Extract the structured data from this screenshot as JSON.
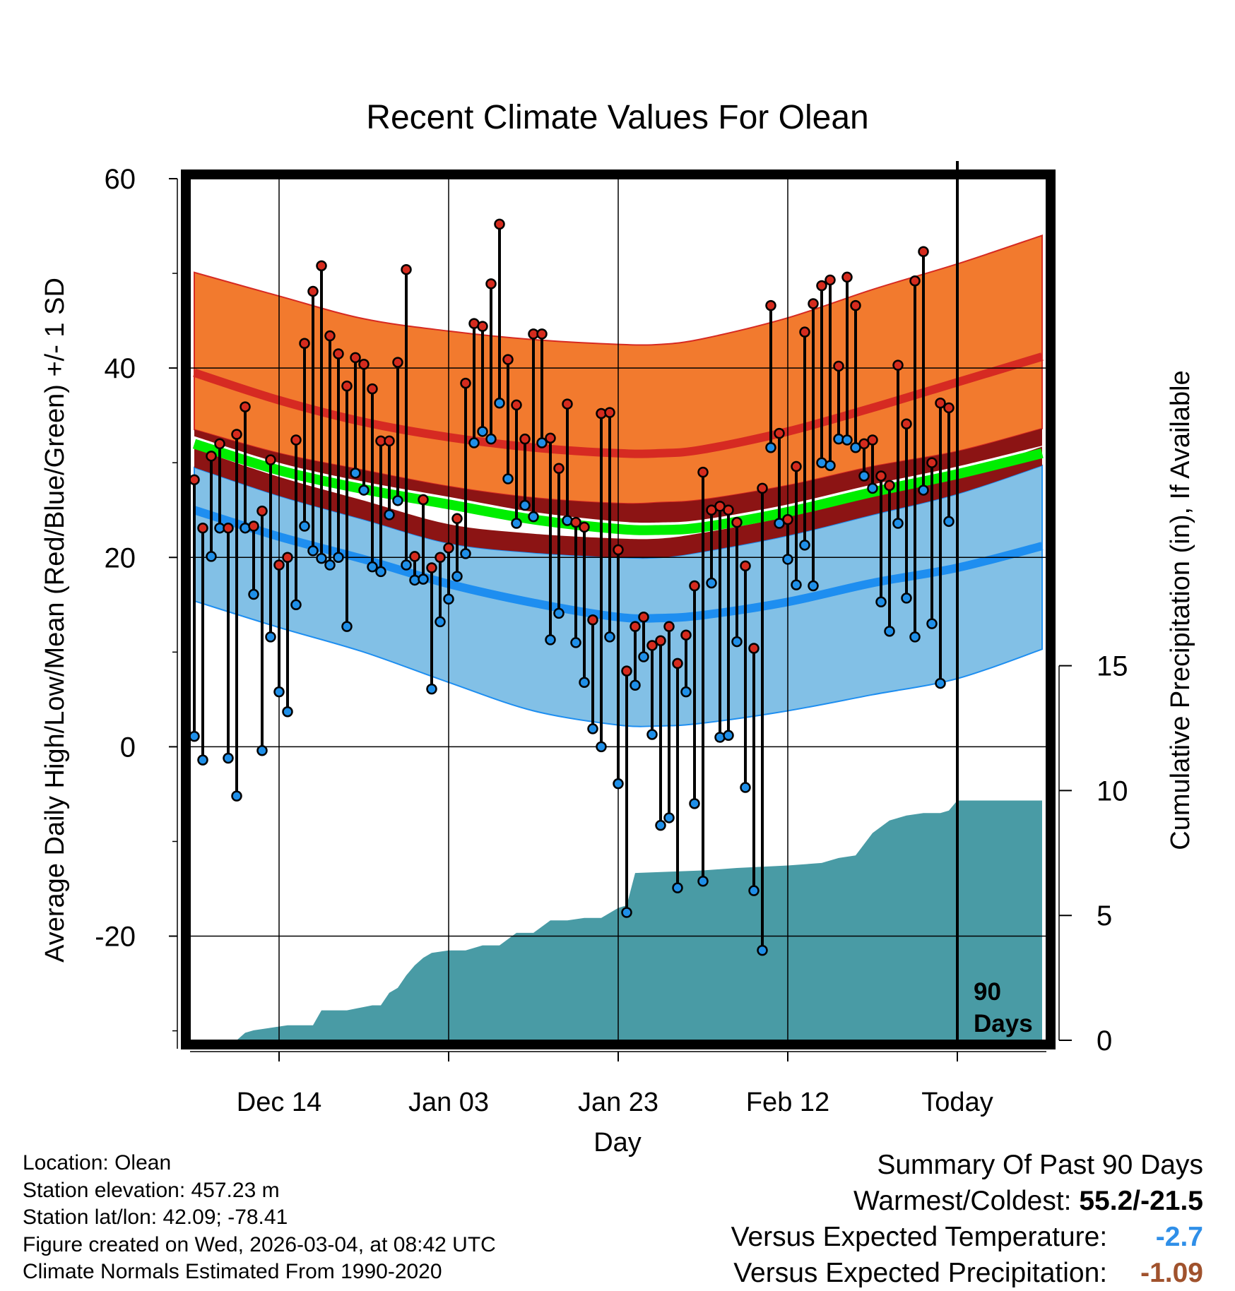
{
  "page": {
    "title": "Recent Climate Values For Olean",
    "colors": {
      "record_band": "#f27a2e",
      "normal_high": "#d62a22",
      "normal_low_band": "#8c1414",
      "mean": "#00ee00",
      "low_band": "#82c0e6",
      "normal_low": "#1e8ef0",
      "precip_fill": "#499ba5",
      "high_dot": "#d52b1e",
      "low_dot": "#1f8fe8"
    }
  },
  "info": {
    "location": "Location: Olean",
    "elevation": "Station elevation: 457.23 m",
    "latlon": "Station lat/lon: 42.09; -78.41",
    "created": "Figure created on Wed, 2026-03-04, at 08:42 UTC",
    "normals": "Climate Normals Estimated From 1990-2020"
  },
  "summary": {
    "title": "Summary Of Past 90 Days",
    "extremes_label": "Warmest/Coldest:",
    "extremes_value": "55.2/-21.5",
    "temp_label": "Versus Expected Temperature:",
    "temp_value": "-2.7",
    "precip_label": "Versus Expected Precipitation:",
    "precip_value": "-1.09"
  },
  "chart_data": {
    "type": "line",
    "title": "Recent Climate Values For Olean",
    "xlabel": "Day",
    "ylabel": "Average Daily High/Low/Mean (Red/Blue/Green) +/- 1 SD",
    "y2label": "Cumulative Precipitation (in), If Available",
    "ylim": [
      -31,
      60
    ],
    "y_ticks": [
      -20,
      0,
      20,
      40,
      60
    ],
    "y_minor": [
      -30,
      -10,
      10,
      30,
      50
    ],
    "y2lim": [
      0,
      34.5
    ],
    "y2_ticks": [
      0,
      5,
      10,
      15
    ],
    "xlim": [
      -0.5,
      100.5
    ],
    "x_ticks": [
      {
        "day": 10,
        "label": "Dec 14"
      },
      {
        "day": 30,
        "label": "Jan 03"
      },
      {
        "day": 50,
        "label": "Jan 23"
      },
      {
        "day": 70,
        "label": "Feb 12"
      },
      {
        "day": 90,
        "label": "Today"
      }
    ],
    "today_day": 90,
    "today_label": "90 Days",
    "grid": true,
    "normal_x": [
      0,
      10,
      20,
      30,
      40,
      50,
      55,
      60,
      70,
      80,
      90,
      100
    ],
    "normal_high_upper": [
      50.1,
      47.6,
      45.2,
      43.9,
      43.0,
      42.5,
      42.5,
      43.1,
      45.3,
      48.3,
      51.0,
      54.0
    ],
    "normal_high": [
      39.5,
      36.6,
      34.3,
      32.7,
      31.6,
      31.0,
      31.0,
      31.4,
      33.3,
      35.8,
      38.5,
      41.2
    ],
    "normal_high_lower": [
      33.5,
      31.0,
      29.2,
      27.5,
      26.3,
      25.7,
      25.8,
      26.1,
      27.6,
      29.6,
      31.2,
      33.6
    ],
    "normal_mean": [
      32.0,
      29.2,
      27.2,
      25.6,
      24.0,
      23.0,
      22.9,
      23.2,
      24.8,
      26.9,
      28.8,
      31.0
    ],
    "normal_low_upper": [
      29.5,
      26.5,
      24.0,
      21.5,
      20.5,
      20.0,
      20.0,
      20.6,
      22.3,
      24.5,
      26.7,
      29.7
    ],
    "normal_low": [
      25.0,
      22.2,
      19.8,
      17.2,
      15.2,
      13.7,
      13.6,
      13.9,
      15.3,
      17.3,
      18.9,
      21.2
    ],
    "normal_low_lower": [
      15.4,
      12.6,
      10.0,
      6.8,
      3.8,
      2.3,
      2.2,
      2.5,
      3.8,
      5.5,
      7.2,
      10.3
    ],
    "highs": [
      28.2,
      23.1,
      30.7,
      32.0,
      23.1,
      33.0,
      35.9,
      23.3,
      24.9,
      30.3,
      19.2,
      20.0,
      32.4,
      42.6,
      48.1,
      50.8,
      43.4,
      41.5,
      38.1,
      41.1,
      40.4,
      37.8,
      32.3,
      32.3,
      40.6,
      50.4,
      20.1,
      26.1,
      18.9,
      20.0,
      21.0,
      24.1,
      38.4,
      44.7,
      44.4,
      48.9,
      55.2,
      40.9,
      36.1,
      32.5,
      43.6,
      43.6,
      32.6,
      29.4,
      36.2,
      23.7,
      23.2,
      13.4,
      35.2,
      35.3,
      20.8,
      8.0,
      12.7,
      13.7,
      10.7,
      11.2,
      12.7,
      8.8,
      11.8,
      17.0,
      29.0,
      25.0,
      25.4,
      25.0,
      23.7,
      19.1,
      10.4,
      27.3,
      46.6,
      33.1,
      24.0,
      29.6,
      43.8,
      46.8,
      48.7,
      49.3,
      40.2,
      49.6,
      46.6,
      32.0,
      32.4,
      28.6,
      27.6,
      40.3,
      34.1,
      49.2,
      52.3,
      30.0,
      36.3,
      35.8
    ],
    "lows": [
      1.1,
      -1.4,
      20.1,
      23.1,
      -1.2,
      -5.2,
      23.1,
      16.1,
      -0.4,
      11.6,
      5.8,
      3.7,
      15.0,
      23.3,
      20.7,
      19.9,
      19.2,
      20.0,
      12.7,
      28.9,
      27.1,
      19.0,
      18.5,
      24.5,
      26.0,
      19.2,
      17.6,
      17.7,
      6.1,
      13.2,
      15.6,
      18.0,
      20.4,
      32.1,
      33.3,
      32.5,
      36.3,
      28.3,
      23.6,
      25.5,
      24.3,
      32.1,
      11.3,
      14.1,
      23.9,
      11.0,
      6.8,
      1.9,
      0.0,
      11.6,
      -3.9,
      -17.5,
      6.5,
      9.5,
      1.3,
      -8.3,
      -7.5,
      -14.9,
      5.8,
      -6.0,
      -14.2,
      17.3,
      1.0,
      1.2,
      11.1,
      -4.3,
      -15.2,
      -21.5,
      31.6,
      23.6,
      19.8,
      17.1,
      21.3,
      17.0,
      30.0,
      29.7,
      32.5,
      32.4,
      31.6,
      28.6,
      27.3,
      15.3,
      12.2,
      23.6,
      15.7,
      11.6,
      27.1,
      13.0,
      6.7,
      23.8
    ],
    "precip_x": [
      0,
      5,
      6,
      7,
      11,
      14,
      15,
      18,
      21,
      22,
      23,
      24,
      25,
      26,
      27,
      28,
      30,
      32,
      34,
      36,
      38,
      40,
      42,
      44,
      46,
      48,
      50,
      51,
      52,
      60,
      64,
      70,
      74,
      76,
      78,
      80,
      82,
      84,
      86,
      88,
      89,
      90,
      100
    ],
    "precip_y": [
      0,
      0,
      0.3,
      0.4,
      0.6,
      0.6,
      1.2,
      1.2,
      1.4,
      1.4,
      1.9,
      2.1,
      2.6,
      3.0,
      3.3,
      3.5,
      3.6,
      3.6,
      3.8,
      3.8,
      4.3,
      4.3,
      4.8,
      4.8,
      4.9,
      4.9,
      5.3,
      5.4,
      6.7,
      6.8,
      6.9,
      7.0,
      7.1,
      7.3,
      7.4,
      8.3,
      8.8,
      9.0,
      9.1,
      9.1,
      9.2,
      9.6,
      9.6
    ]
  }
}
